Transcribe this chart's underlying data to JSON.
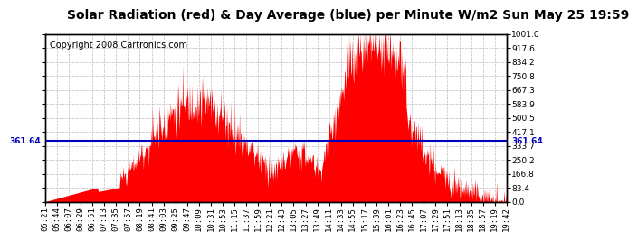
{
  "title": "Solar Radiation (red) & Day Average (blue) per Minute W/m2 Sun May 25 19:59",
  "copyright": "Copyright 2008 Cartronics.com",
  "ymin": 0.0,
  "ymax": 1001.0,
  "yticks": [
    0.0,
    83.4,
    166.8,
    250.2,
    333.7,
    417.1,
    500.5,
    583.9,
    667.3,
    750.8,
    834.2,
    917.6,
    1001.0
  ],
  "day_average": 361.64,
  "fill_color": "#FF0000",
  "line_color": "#0000BB",
  "background_color": "#FFFFFF",
  "grid_color": "#BBBBBB",
  "title_fontsize": 10,
  "copyright_fontsize": 7,
  "tick_fontsize": 6.5
}
